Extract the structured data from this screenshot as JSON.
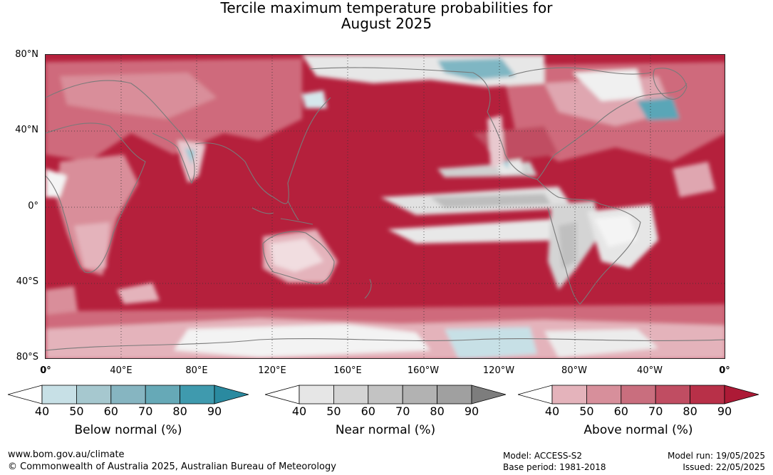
{
  "title": {
    "line1": "Tercile maximum temperature probabilities for",
    "line2": "August 2025"
  },
  "map": {
    "lat_labels": [
      "80°N",
      "40°N",
      "0°",
      "40°S",
      "80°S"
    ],
    "lon_labels": [
      "0°",
      "40°E",
      "80°E",
      "120°E",
      "160°E",
      "160°W",
      "120°W",
      "80°W",
      "40°W",
      "0°"
    ],
    "colors": {
      "above_dominant": "#b5203c",
      "land_outline": "#7a7a7a",
      "grid": "#333333"
    }
  },
  "colorbars": [
    {
      "name": "below",
      "title": "Below normal (%)",
      "ticks": [
        "40",
        "50",
        "60",
        "70",
        "80",
        "90"
      ],
      "colors": [
        "#ffffff",
        "#c7e0e6",
        "#a6c8cf",
        "#86b5c1",
        "#66a9b7",
        "#3f9aae",
        "#2a8aa0"
      ]
    },
    {
      "name": "near",
      "title": "Near normal (%)",
      "ticks": [
        "40",
        "50",
        "60",
        "70",
        "80",
        "90"
      ],
      "colors": [
        "#ffffff",
        "#e6e6e6",
        "#d4d4d4",
        "#c3c3c3",
        "#b2b2b2",
        "#a0a0a0",
        "#7d7d7d"
      ]
    },
    {
      "name": "above",
      "title": "Above normal (%)",
      "ticks": [
        "40",
        "50",
        "60",
        "70",
        "80",
        "90"
      ],
      "colors": [
        "#ffffff",
        "#e4b3bb",
        "#d78f9b",
        "#c96e7e",
        "#c04d62",
        "#b83048",
        "#ad1a36"
      ]
    }
  ],
  "footer": {
    "website": "www.bom.gov.au/climate",
    "copyright": "© Commonwealth of Australia 2025, Australian Bureau of Meteorology",
    "model": "Model: ACCESS-S2",
    "base_period": "Base period: 1981-2018",
    "model_run": "Model run: 19/05/2025",
    "issued": "Issued: 22/05/2025"
  }
}
